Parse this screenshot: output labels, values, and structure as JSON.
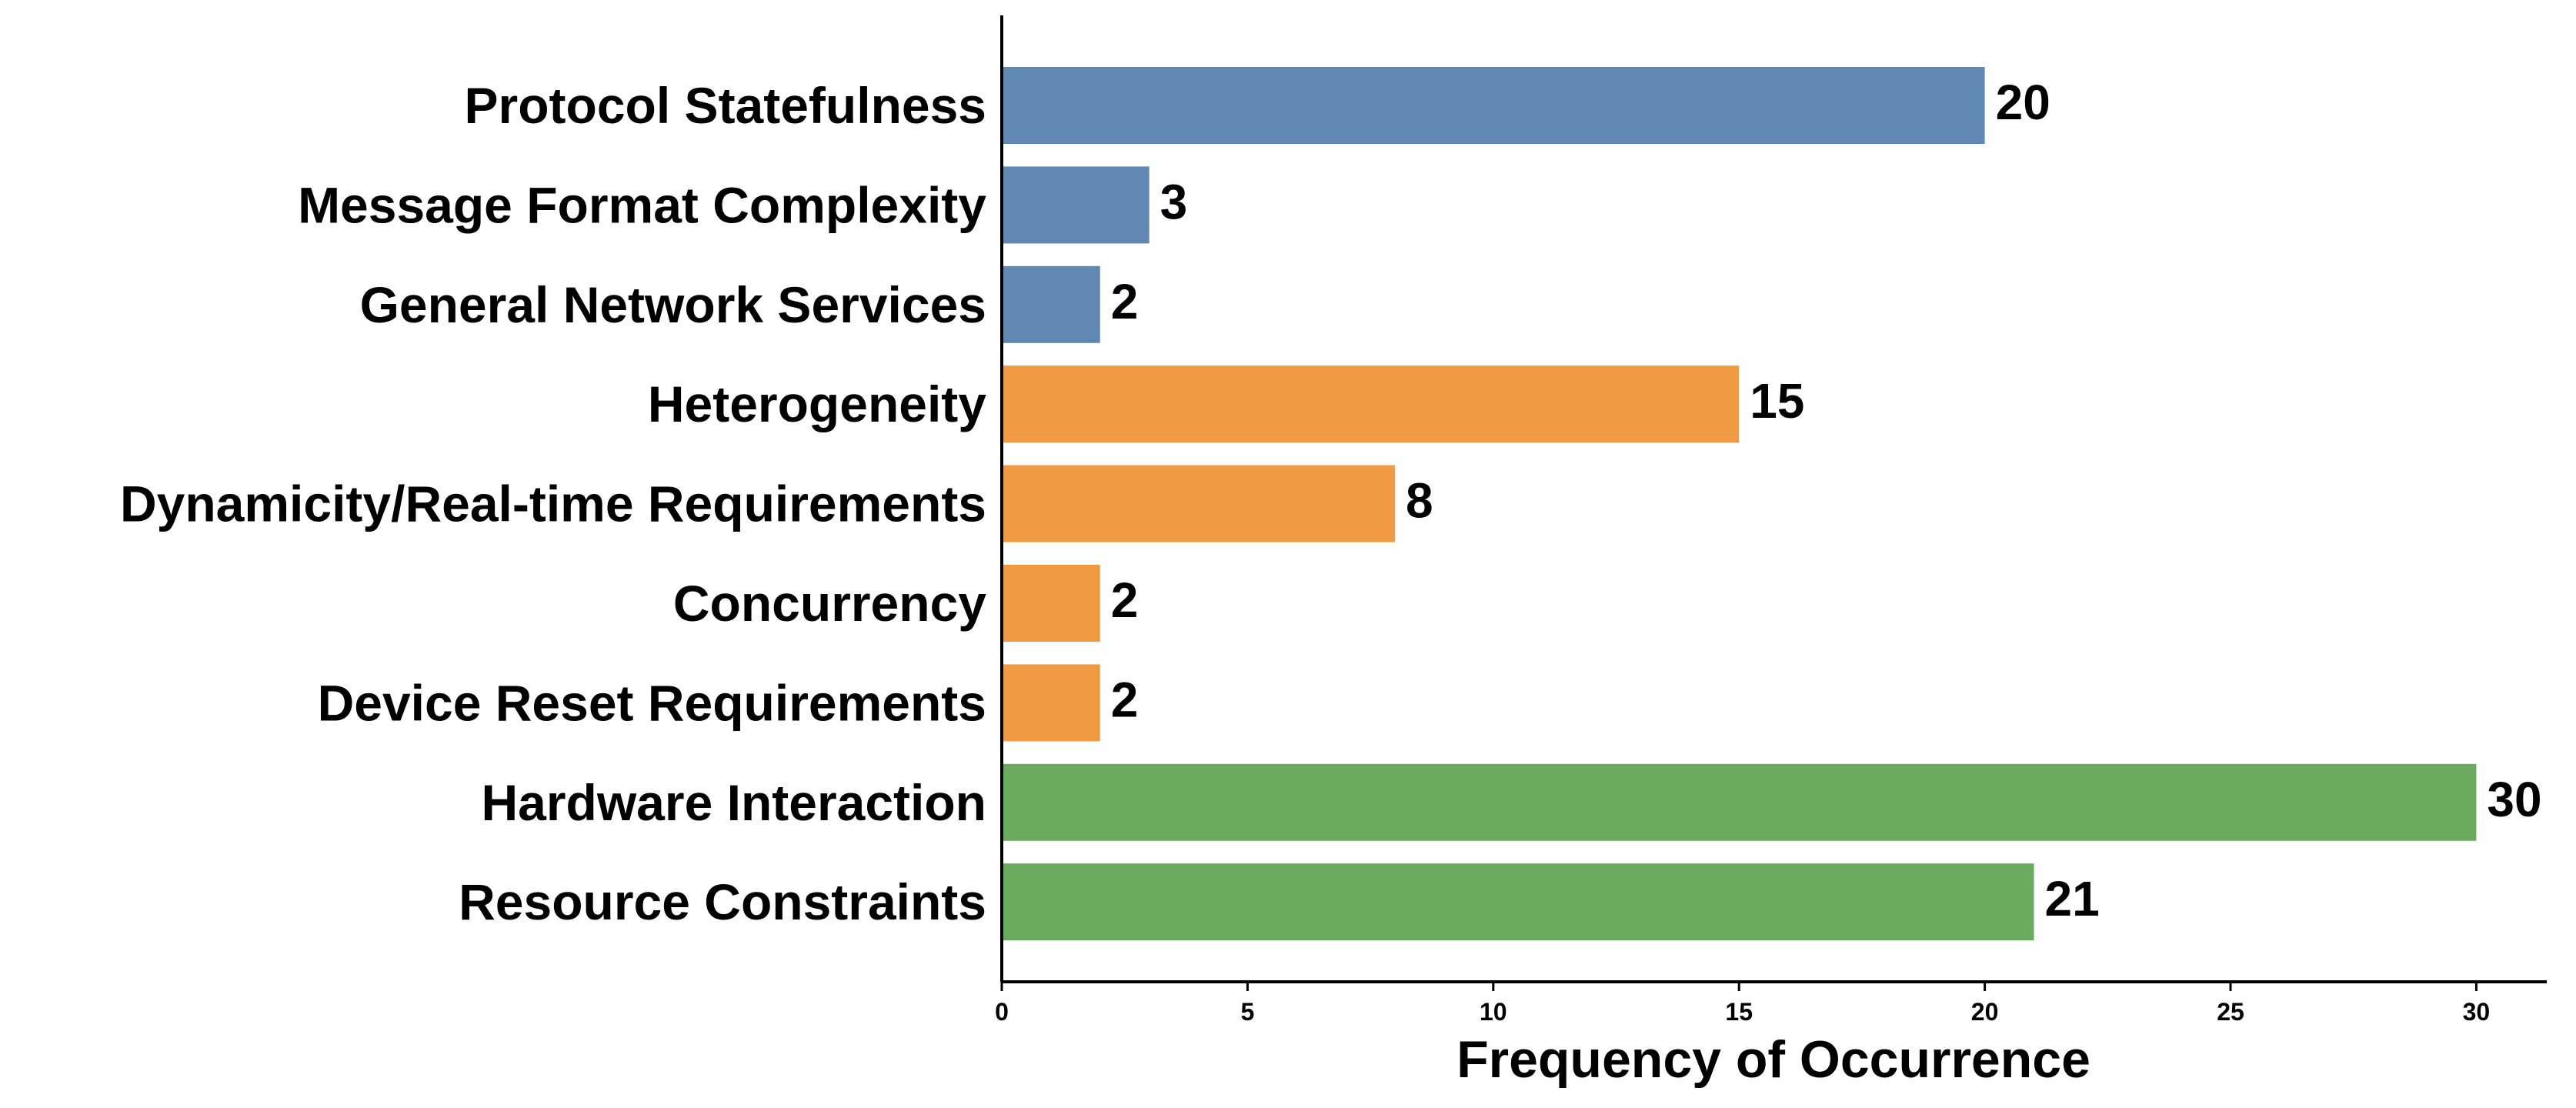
{
  "chart_data": {
    "type": "bar",
    "orientation": "horizontal",
    "categories": [
      "Protocol Statefulness",
      "Message Format Complexity",
      "General Network Services",
      "Heterogeneity",
      "Dynamicity/Real-time Requirements",
      "Concurrency",
      "Device Reset Requirements",
      "Hardware Interaction",
      "Resource Constraints"
    ],
    "values": [
      20,
      3,
      2,
      15,
      8,
      2,
      2,
      30,
      21
    ],
    "value_labels": [
      "20",
      "3",
      "2",
      "15",
      "8",
      "2",
      "2",
      "30",
      "21"
    ],
    "colors": [
      "#6088b2",
      "#6088b2",
      "#6088b2",
      "#f19a43",
      "#f19a43",
      "#f19a43",
      "#f19a43",
      "#6aab5f",
      "#6aab5f"
    ],
    "title": "",
    "xlabel": "Frequency of Occurrence",
    "ylabel": "",
    "xlim": [
      0,
      31.5
    ],
    "xticks": [
      0,
      5,
      10,
      15,
      20,
      25,
      30
    ],
    "xtick_labels": [
      "0",
      "5",
      "10",
      "15",
      "20",
      "25",
      "30"
    ],
    "grid": false,
    "legend": "none"
  }
}
